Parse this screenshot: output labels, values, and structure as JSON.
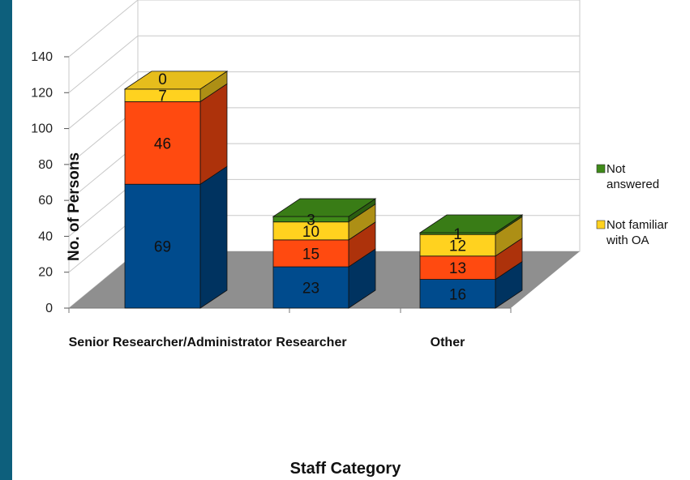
{
  "page": {
    "accent_strip_color": "#0d5f7c"
  },
  "chart_data": {
    "type": "bar",
    "stacked": true,
    "style": "3d",
    "categories": [
      "Senior Researcher/Administrator",
      "Researcher",
      "Other"
    ],
    "series": [
      {
        "name": "",
        "color": "#004b8d",
        "values": [
          69,
          23,
          16
        ]
      },
      {
        "name": "",
        "color": "#ff4a10",
        "values": [
          46,
          15,
          13
        ]
      },
      {
        "name": "Not familiar with OA",
        "color": "#ffd21f",
        "values": [
          7,
          10,
          12
        ]
      },
      {
        "name": "Not answered",
        "color": "#3f8a18",
        "values": [
          0,
          3,
          1
        ]
      }
    ],
    "title": "",
    "xlabel": "Staff Category",
    "ylabel": "No. of Persons",
    "ylim": [
      0,
      140
    ],
    "yticks": [
      0,
      20,
      40,
      60,
      80,
      100,
      120,
      140
    ],
    "grid": true,
    "legend_position": "right",
    "legend": [
      {
        "label": "Not answered",
        "color": "#3f8a18"
      },
      {
        "label": "Not familiar with OA",
        "color": "#ffd21f"
      }
    ],
    "floor_color": "#8f8f8f"
  }
}
